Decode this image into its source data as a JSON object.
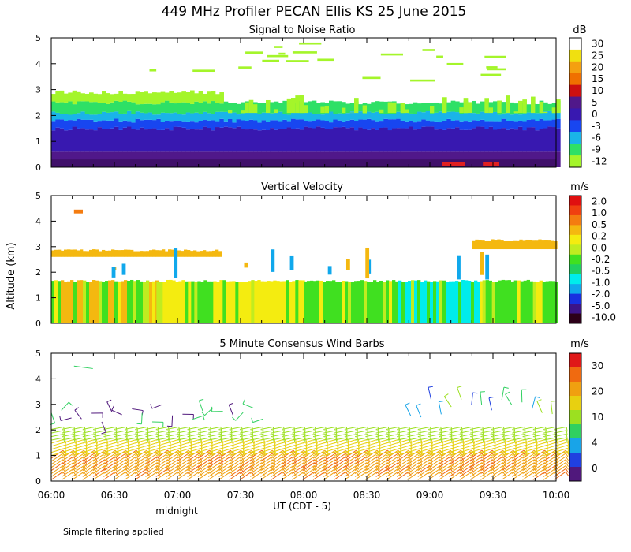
{
  "title": "449 MHz Profiler PECAN Ellis KS 25 June 2015",
  "y_label": "Altitude (km)",
  "x_label": "UT  (CDT - 5)",
  "midnight_label": "midnight",
  "footer": "Simple filtering applied",
  "x_ticks": [
    "06:00",
    "06:30",
    "07:00",
    "07:30",
    "08:00",
    "08:30",
    "09:00",
    "09:30",
    "10:00"
  ],
  "panels": [
    {
      "title": "Signal to Noise Ratio",
      "unit": "dB"
    },
    {
      "title": "Vertical Velocity",
      "unit": "m/s"
    },
    {
      "title": "5 Minute Consensus Wind Barbs",
      "unit": "m/s"
    }
  ],
  "snr_colors": [
    "#a4f52a",
    "#2ee066",
    "#1ab4e8",
    "#1846f0",
    "#3818b0",
    "#50188a",
    "#cc1010",
    "#f07000",
    "#f4a010",
    "#f0e010",
    "#ffffff"
  ],
  "snr_ticks": [
    "30",
    "25",
    "20",
    "15",
    "10",
    "5",
    "0",
    "-3",
    "-6",
    "-9",
    "-12"
  ],
  "vel_colors": [
    "#2c0018",
    "#3c1488",
    "#1830e0",
    "#10a8ec",
    "#00ecec",
    "#20d060",
    "#40e020",
    "#c0ec20",
    "#f4ec10",
    "#f4b810",
    "#f47c10",
    "#f04010",
    "#e01010"
  ],
  "vel_ticks": [
    "2.0",
    "1.0",
    "0.5",
    "0.2",
    "0.0",
    "-0.2",
    "-0.5",
    "-1.0",
    "-2.0",
    "-5.0",
    "-10.0"
  ],
  "wind_colors": [
    "#50187c",
    "#2040e0",
    "#18a4e8",
    "#30d060",
    "#9ce020",
    "#e8d010",
    "#f0a010",
    "#f06a10",
    "#e01818"
  ],
  "wind_ticks": [
    "30",
    "20",
    "10",
    "4",
    "0"
  ],
  "chart_data": [
    {
      "type": "heatmap",
      "title": "Signal to Noise Ratio",
      "units": "dB",
      "xlabel": "UT  (CDT - 5)",
      "ylabel": "Altitude (km)",
      "x_range_hours_ut": [
        6.0,
        10.0
      ],
      "ylim": [
        0,
        5
      ],
      "y_ticks": [
        0,
        1,
        2,
        3,
        4,
        5
      ],
      "colorbar_levels": [
        30,
        25,
        20,
        15,
        10,
        5,
        0,
        -3,
        -6,
        -9,
        -12
      ],
      "layers": [
        {
          "altitude_km": [
            0.0,
            0.6
          ],
          "snr_db": 5
        },
        {
          "altitude_km": [
            0.6,
            1.5
          ],
          "snr_db": 0
        },
        {
          "altitude_km": [
            1.5,
            1.8
          ],
          "snr_db": -3
        },
        {
          "altitude_km": [
            1.8,
            2.1
          ],
          "snr_db": -6
        },
        {
          "altitude_km": [
            2.1,
            2.5
          ],
          "snr_db": -9
        },
        {
          "altitude_km": [
            2.5,
            2.9
          ],
          "snr_db": -12,
          "note": "cloud layer 06:00-07:20"
        }
      ]
    },
    {
      "type": "heatmap",
      "title": "Vertical Velocity",
      "units": "m/s",
      "ylabel": "Altitude (km)",
      "x_range_hours_ut": [
        6.0,
        10.0
      ],
      "ylim": [
        0,
        5
      ],
      "y_ticks": [
        0,
        1,
        2,
        3,
        4,
        5
      ],
      "colorbar_levels": [
        2.0,
        1.0,
        0.5,
        0.2,
        0.0,
        -0.2,
        -0.5,
        -1.0,
        -2.0,
        -5.0,
        -10.0
      ],
      "regions": [
        {
          "time": "06:00-06:50",
          "altitude_km": [
            0,
            1.7
          ],
          "velocity_ms": 0.2
        },
        {
          "time": "06:50-08:00",
          "altitude_km": [
            0,
            1.7
          ],
          "velocity_ms": 0.0
        },
        {
          "time": "08:00-08:45",
          "altitude_km": [
            0,
            1.7
          ],
          "velocity_ms": -0.2
        },
        {
          "time": "08:45-09:25",
          "altitude_km": [
            0,
            1.7
          ],
          "velocity_ms": -0.5
        },
        {
          "time": "09:25-10:00",
          "altitude_km": [
            0,
            1.7
          ],
          "velocity_ms": -0.2
        },
        {
          "time": "06:00-07:20",
          "altitude_km": [
            2.6,
            2.9
          ],
          "velocity_ms": 0.2
        },
        {
          "time": "09:20-10:00",
          "altitude_km": [
            2.9,
            3.3
          ],
          "velocity_ms": 0.2
        }
      ]
    },
    {
      "type": "scatter",
      "title": "5 Minute Consensus Wind Barbs",
      "units": "m/s",
      "ylabel": "Altitude (km)",
      "x_range_hours_ut": [
        6.0,
        10.0
      ],
      "ylim": [
        0,
        5
      ],
      "y_ticks": [
        0,
        1,
        2,
        3,
        4,
        5
      ],
      "colorbar_levels": [
        30,
        20,
        10,
        4,
        0
      ],
      "barb_groups": [
        {
          "altitude_km": [
            0.0,
            1.0
          ],
          "speed_ms": 20,
          "from_direction": "south-southwest"
        },
        {
          "altitude_km": [
            1.0,
            1.6
          ],
          "speed_ms": 15,
          "from_direction": "south"
        },
        {
          "altitude_km": [
            1.6,
            2.1
          ],
          "speed_ms": 10,
          "from_direction": "south"
        },
        {
          "altitude_km": [
            2.2,
            3.0
          ],
          "time": "06:00-07:40",
          "speed_ms": 3,
          "from_direction": "variable"
        },
        {
          "altitude_km": [
            2.2,
            3.0
          ],
          "time": "08:50-10:00",
          "speed_ms": 7,
          "from_direction": "variable"
        },
        {
          "altitude_km": [
            4.3,
            4.5
          ],
          "time": "06:15-06:25",
          "speed_ms": 10,
          "from_direction": "west"
        }
      ]
    }
  ]
}
